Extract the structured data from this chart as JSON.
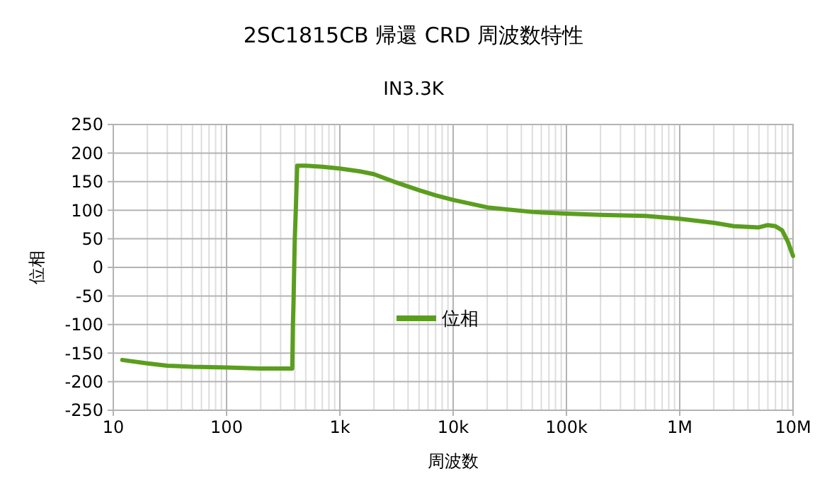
{
  "chart_data": {
    "type": "line",
    "title": "2SC1815CB 帰還 CRD 周波数特性",
    "subtitle": "IN3.3K",
    "xlabel": "周波数",
    "ylabel": "位相",
    "log": "x",
    "grid": true,
    "legend": "center",
    "line_style": "solid",
    "xlim": [
      10,
      10000000
    ],
    "xticks": [
      10,
      100,
      {
        "value": 1000,
        "label": "1k"
      },
      {
        "value": 10000,
        "label": "10k"
      },
      {
        "value": 100000,
        "label": "100k"
      },
      {
        "value": 1000000,
        "label": "1M"
      },
      {
        "value": 10000000,
        "label": "10M"
      }
    ],
    "ylim": [
      -250,
      250
    ],
    "yticks": [
      -250,
      -200,
      -150,
      -100,
      -50,
      0,
      50,
      100,
      150,
      200,
      250
    ],
    "series": [
      {
        "name": "位相",
        "color": "#5b9e1f",
        "x": [
          12,
          20,
          30,
          50,
          100,
          200,
          380,
          385,
          390,
          400,
          410,
          420,
          500,
          700,
          1000,
          1500,
          2000,
          3000,
          5000,
          7000,
          10000,
          20000,
          50000,
          100000,
          200000,
          500000,
          1000000,
          2000000,
          3000000,
          5000000,
          6000000,
          7000000,
          8000000,
          9000000,
          10000000
        ],
        "values": [
          -162,
          -168,
          -172,
          -174,
          -175,
          -177,
          -177,
          -100,
          -60,
          50,
          110,
          178,
          178,
          176,
          173,
          168,
          163,
          150,
          135,
          126,
          118,
          105,
          97,
          94,
          92,
          90,
          85,
          78,
          72,
          70,
          74,
          72,
          65,
          45,
          20
        ]
      }
    ]
  }
}
